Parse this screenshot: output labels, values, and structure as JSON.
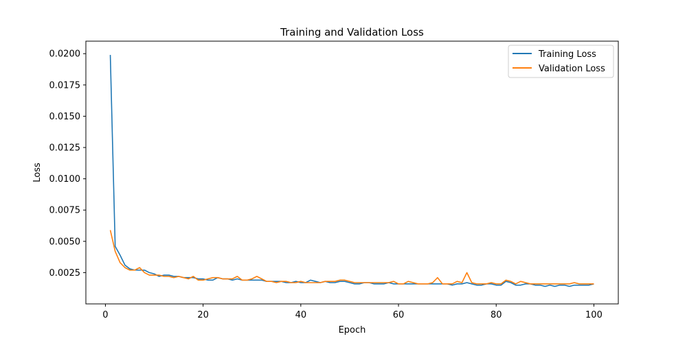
{
  "chart_data": {
    "type": "line",
    "title": "Training and Validation Loss",
    "xlabel": "Epoch",
    "ylabel": "Loss",
    "xlim": [
      -4,
      105
    ],
    "ylim": [
      0.0,
      0.021
    ],
    "x_ticks": [
      0,
      20,
      40,
      60,
      80,
      100
    ],
    "x_tick_labels": [
      "0",
      "20",
      "40",
      "60",
      "80",
      "100"
    ],
    "y_ticks": [
      0.0025,
      0.005,
      0.0075,
      0.01,
      0.0125,
      0.015,
      0.0175,
      0.02
    ],
    "y_tick_labels": [
      "0.0025",
      "0.0050",
      "0.0075",
      "0.0100",
      "0.0125",
      "0.0150",
      "0.0175",
      "0.0200"
    ],
    "grid": false,
    "legend_position": "top-right",
    "x": [
      1,
      2,
      3,
      4,
      5,
      6,
      7,
      8,
      9,
      10,
      11,
      12,
      13,
      14,
      15,
      16,
      17,
      18,
      19,
      20,
      21,
      22,
      23,
      24,
      25,
      26,
      27,
      28,
      29,
      30,
      31,
      32,
      33,
      34,
      35,
      36,
      37,
      38,
      39,
      40,
      41,
      42,
      43,
      44,
      45,
      46,
      47,
      48,
      49,
      50,
      51,
      52,
      53,
      54,
      55,
      56,
      57,
      58,
      59,
      60,
      61,
      62,
      63,
      64,
      65,
      66,
      67,
      68,
      69,
      70,
      71,
      72,
      73,
      74,
      75,
      76,
      77,
      78,
      79,
      80,
      81,
      82,
      83,
      84,
      85,
      86,
      87,
      88,
      89,
      90,
      91,
      92,
      93,
      94,
      95,
      96,
      97,
      98,
      99,
      100
    ],
    "series": [
      {
        "name": "Training Loss",
        "color": "#1f77b4",
        "values": [
          0.0199,
          0.0046,
          0.0039,
          0.0031,
          0.0028,
          0.0027,
          0.0027,
          0.0027,
          0.0025,
          0.0024,
          0.0022,
          0.0023,
          0.0023,
          0.0022,
          0.0022,
          0.0021,
          0.0021,
          0.0021,
          0.002,
          0.002,
          0.0019,
          0.0019,
          0.0021,
          0.002,
          0.002,
          0.0019,
          0.002,
          0.0019,
          0.0019,
          0.0019,
          0.0019,
          0.0019,
          0.0018,
          0.0018,
          0.0018,
          0.0018,
          0.0017,
          0.0017,
          0.0018,
          0.0017,
          0.0017,
          0.0019,
          0.0018,
          0.0017,
          0.0018,
          0.0017,
          0.0017,
          0.0018,
          0.0018,
          0.0017,
          0.0016,
          0.0016,
          0.0017,
          0.0017,
          0.0016,
          0.0016,
          0.0016,
          0.0017,
          0.0016,
          0.0016,
          0.0016,
          0.0016,
          0.0016,
          0.0016,
          0.0016,
          0.0016,
          0.0016,
          0.0016,
          0.0016,
          0.0016,
          0.0015,
          0.0016,
          0.0016,
          0.0017,
          0.0016,
          0.0015,
          0.0015,
          0.0016,
          0.0016,
          0.0015,
          0.0015,
          0.0018,
          0.0017,
          0.0015,
          0.0015,
          0.0016,
          0.0016,
          0.0015,
          0.0015,
          0.0014,
          0.0015,
          0.0014,
          0.0015,
          0.0015,
          0.0014,
          0.0015,
          0.0015,
          0.0015,
          0.0015,
          0.0016
        ]
      },
      {
        "name": "Validation Loss",
        "color": "#ff7f0e",
        "values": [
          0.0059,
          0.0042,
          0.0033,
          0.0029,
          0.0027,
          0.0027,
          0.0029,
          0.0025,
          0.0023,
          0.0023,
          0.0023,
          0.0022,
          0.0022,
          0.0021,
          0.0022,
          0.0021,
          0.002,
          0.0022,
          0.0019,
          0.0019,
          0.002,
          0.0021,
          0.0021,
          0.002,
          0.002,
          0.002,
          0.0022,
          0.0019,
          0.0019,
          0.002,
          0.0022,
          0.002,
          0.0018,
          0.0018,
          0.0017,
          0.0018,
          0.0018,
          0.0017,
          0.0017,
          0.0018,
          0.0017,
          0.0017,
          0.0017,
          0.0017,
          0.0018,
          0.0018,
          0.0018,
          0.0019,
          0.0019,
          0.0018,
          0.0017,
          0.0017,
          0.0017,
          0.0017,
          0.0017,
          0.0017,
          0.0017,
          0.0017,
          0.0018,
          0.0016,
          0.0016,
          0.0018,
          0.0017,
          0.0016,
          0.0016,
          0.0016,
          0.0017,
          0.0021,
          0.0016,
          0.0016,
          0.0016,
          0.0018,
          0.0017,
          0.0025,
          0.0017,
          0.0016,
          0.0016,
          0.0016,
          0.0017,
          0.0016,
          0.0016,
          0.0019,
          0.0018,
          0.0016,
          0.0018,
          0.0017,
          0.0016,
          0.0016,
          0.0016,
          0.0016,
          0.0016,
          0.0016,
          0.0016,
          0.0016,
          0.0016,
          0.0017,
          0.0016,
          0.0016,
          0.0016,
          0.0016
        ]
      }
    ]
  }
}
